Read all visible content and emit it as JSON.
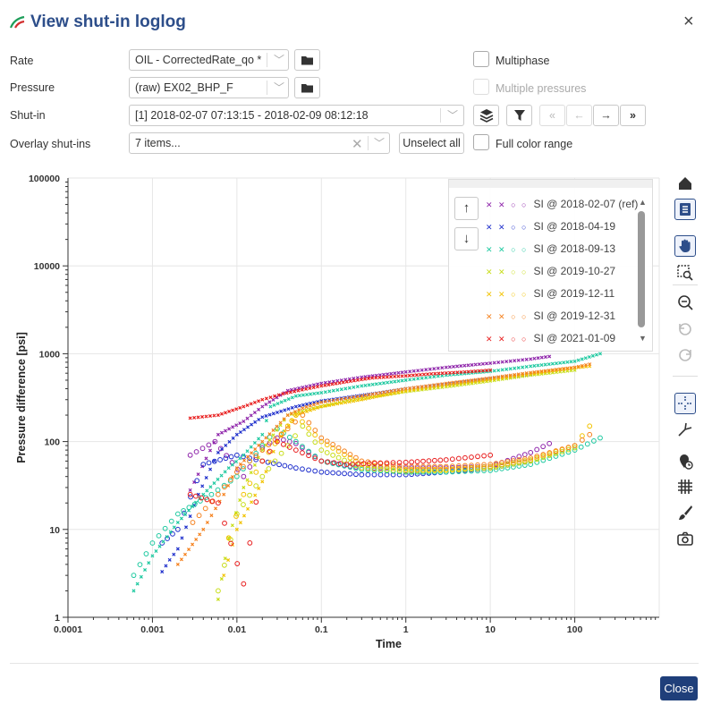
{
  "dialog": {
    "title": "View shut-in loglog",
    "close_symbol": "×",
    "close_button_label": "Close"
  },
  "form": {
    "rate_label": "Rate",
    "rate_value": "OIL - CorrectedRate_qo *",
    "pressure_label": "Pressure",
    "pressure_value": "(raw) EX02_BHP_F",
    "shutin_label": "Shut-in",
    "shutin_value": "[1] 2018-02-07 07:13:15 - 2018-02-09 08:12:18",
    "overlay_label": "Overlay shut-ins",
    "overlay_value": "7 items...",
    "unselect_all_label": "Unselect all",
    "multiphase_label": "Multiphase",
    "multiple_pressures_label": "Multiple pressures",
    "full_color_range_label": "Full color range"
  },
  "toolbar_icons": [
    "home-icon",
    "legend-toggle-icon",
    "pan-icon",
    "zoom-box-icon",
    "zoom-out-icon",
    "undo-icon",
    "redo-icon",
    "crosshair-icon",
    "derivative-icon",
    "time-marker-icon",
    "grid-icon",
    "brush-icon",
    "camera-icon"
  ],
  "colors": {
    "accent": "#2d4e8a",
    "close_button": "#1f3f7a"
  },
  "chart_data": {
    "type": "scatter",
    "xlabel": "Time",
    "ylabel": "Pressure difference [psi]",
    "x_scale": "log",
    "y_scale": "log",
    "xlim": [
      0.0001,
      1000
    ],
    "ylim": [
      1,
      100000
    ],
    "x_ticks": [
      "0.0001",
      "0.001",
      "0.01",
      "0.1",
      "1",
      "10",
      "100"
    ],
    "y_ticks": [
      "1",
      "10",
      "100",
      "1000",
      "10000",
      "100000"
    ],
    "grid": true,
    "legend_position": "top-right",
    "legend_entries": [
      "SI @ 2018-02-07 (ref)",
      "SI @ 2018-04-19",
      "SI @ 2018-09-13",
      "SI @ 2019-10-27",
      "SI @ 2019-12-11",
      "SI @ 2019-12-31",
      "SI @ 2021-01-09"
    ],
    "series": [
      {
        "name": "SI @ 2018-02-07 (ref)",
        "color": "#8e24aa",
        "pressure": {
          "x": [
            0.0028,
            0.006,
            0.012,
            0.02,
            0.04,
            0.1,
            0.3,
            1,
            3,
            10,
            30,
            50
          ],
          "y": [
            28,
            120,
            170,
            250,
            380,
            460,
            540,
            620,
            700,
            780,
            870,
            930
          ]
        },
        "derivative": {
          "x": [
            0.0028,
            0.0055,
            0.012,
            0.02,
            0.03,
            0.05,
            0.1,
            0.3,
            1,
            3,
            10,
            30,
            50
          ],
          "y": [
            70,
            100,
            40,
            85,
            110,
            95,
            60,
            50,
            50,
            50,
            52,
            75,
            95
          ]
        }
      },
      {
        "name": "SI @ 2018-04-19",
        "color": "#1e2fcc",
        "pressure": {
          "x": [
            0.0013,
            0.0016,
            0.002,
            0.0035,
            0.006,
            0.01,
            0.02,
            0.05,
            0.1,
            0.5,
            1,
            3,
            10,
            30
          ],
          "y": [
            3.3,
            4.5,
            6,
            25,
            75,
            120,
            190,
            250,
            290,
            360,
            400,
            450,
            520,
            580
          ]
        },
        "derivative": {
          "x": [
            0.0013,
            0.002,
            0.004,
            0.01,
            0.02,
            0.05,
            0.1,
            0.3,
            1,
            3,
            10,
            30
          ],
          "y": [
            7,
            10,
            55,
            70,
            60,
            50,
            45,
            42,
            42,
            45,
            50,
            60
          ]
        }
      },
      {
        "name": "SI @ 2018-09-13",
        "color": "#1ec9a0",
        "pressure": {
          "x": [
            0.0006,
            0.001,
            0.002,
            0.004,
            0.008,
            0.012,
            0.02,
            0.025,
            0.05,
            0.1,
            0.3,
            1,
            3,
            10,
            30,
            100,
            200
          ],
          "y": [
            2,
            5,
            12,
            25,
            50,
            70,
            120,
            250,
            330,
            360,
            430,
            500,
            570,
            630,
            720,
            820,
            1000
          ]
        },
        "derivative": {
          "x": [
            0.0006,
            0.001,
            0.002,
            0.005,
            0.01,
            0.02,
            0.03,
            0.05,
            0.1,
            0.3,
            1,
            3,
            10,
            30,
            100,
            200
          ],
          "y": [
            3,
            7,
            15,
            25,
            40,
            90,
            140,
            100,
            60,
            48,
            45,
            45,
            47,
            55,
            80,
            110
          ]
        }
      },
      {
        "name": "SI @ 2019-10-27",
        "color": "#c7dd16",
        "pressure": {
          "x": [
            0.006,
            0.008,
            0.012,
            0.02,
            0.04,
            0.08,
            0.2,
            1,
            3,
            10,
            30,
            100
          ],
          "y": [
            1.6,
            8,
            30,
            80,
            200,
            240,
            290,
            370,
            420,
            490,
            570,
            650
          ]
        },
        "derivative": {
          "x": [
            0.006,
            0.01,
            0.02,
            0.04,
            0.06,
            0.1,
            0.3,
            1,
            3,
            10,
            30,
            100
          ],
          "y": [
            2,
            15,
            40,
            90,
            150,
            80,
            50,
            46,
            47,
            50,
            60,
            85
          ]
        }
      },
      {
        "name": "SI @ 2019-12-11",
        "color": "#f2c200",
        "pressure": {
          "x": [
            0.007,
            0.01,
            0.02,
            0.03,
            0.05,
            0.1,
            0.3,
            1,
            3,
            10,
            30,
            100,
            150
          ],
          "y": [
            3,
            10,
            35,
            100,
            200,
            250,
            300,
            380,
            440,
            510,
            590,
            690,
            720
          ]
        },
        "derivative": {
          "x": [
            0.008,
            0.012,
            0.02,
            0.04,
            0.05,
            0.1,
            0.3,
            1,
            3,
            10,
            30,
            100,
            150
          ],
          "y": [
            8,
            25,
            60,
            150,
            200,
            100,
            55,
            48,
            48,
            52,
            62,
            90,
            150
          ]
        }
      },
      {
        "name": "SI @ 2019-12-31",
        "color": "#f5821f",
        "pressure": {
          "x": [
            0.002,
            0.004,
            0.007,
            0.01,
            0.02,
            0.04,
            0.06,
            0.1,
            0.3,
            1,
            3,
            10,
            30,
            100,
            150
          ],
          "y": [
            4,
            10,
            25,
            50,
            100,
            200,
            240,
            280,
            330,
            400,
            460,
            530,
            610,
            700,
            760
          ]
        },
        "derivative": {
          "x": [
            0.003,
            0.006,
            0.01,
            0.02,
            0.04,
            0.06,
            0.1,
            0.3,
            1,
            3,
            10,
            30,
            100,
            150
          ],
          "y": [
            12,
            25,
            45,
            80,
            140,
            200,
            110,
            60,
            52,
            52,
            55,
            65,
            90,
            120
          ]
        }
      },
      {
        "name": "SI @ 2021-01-09",
        "color": "#e81c1c",
        "pressure": {
          "x": [
            0.0028,
            0.006,
            0.012,
            0.02,
            0.035,
            0.1,
            0.2,
            0.4,
            1,
            2,
            5,
            10
          ],
          "y": [
            185,
            200,
            250,
            300,
            350,
            430,
            480,
            530,
            560,
            590,
            620,
            650
          ]
        },
        "derivative": {
          "x": [
            0.0028,
            0.006,
            0.012,
            0.02,
            0.03,
            0.05,
            0.1,
            0.2,
            0.5,
            1,
            3,
            10
          ],
          "y": [
            25,
            20,
            2.4,
            60,
            100,
            80,
            60,
            55,
            57,
            58,
            62,
            70
          ]
        }
      }
    ]
  }
}
